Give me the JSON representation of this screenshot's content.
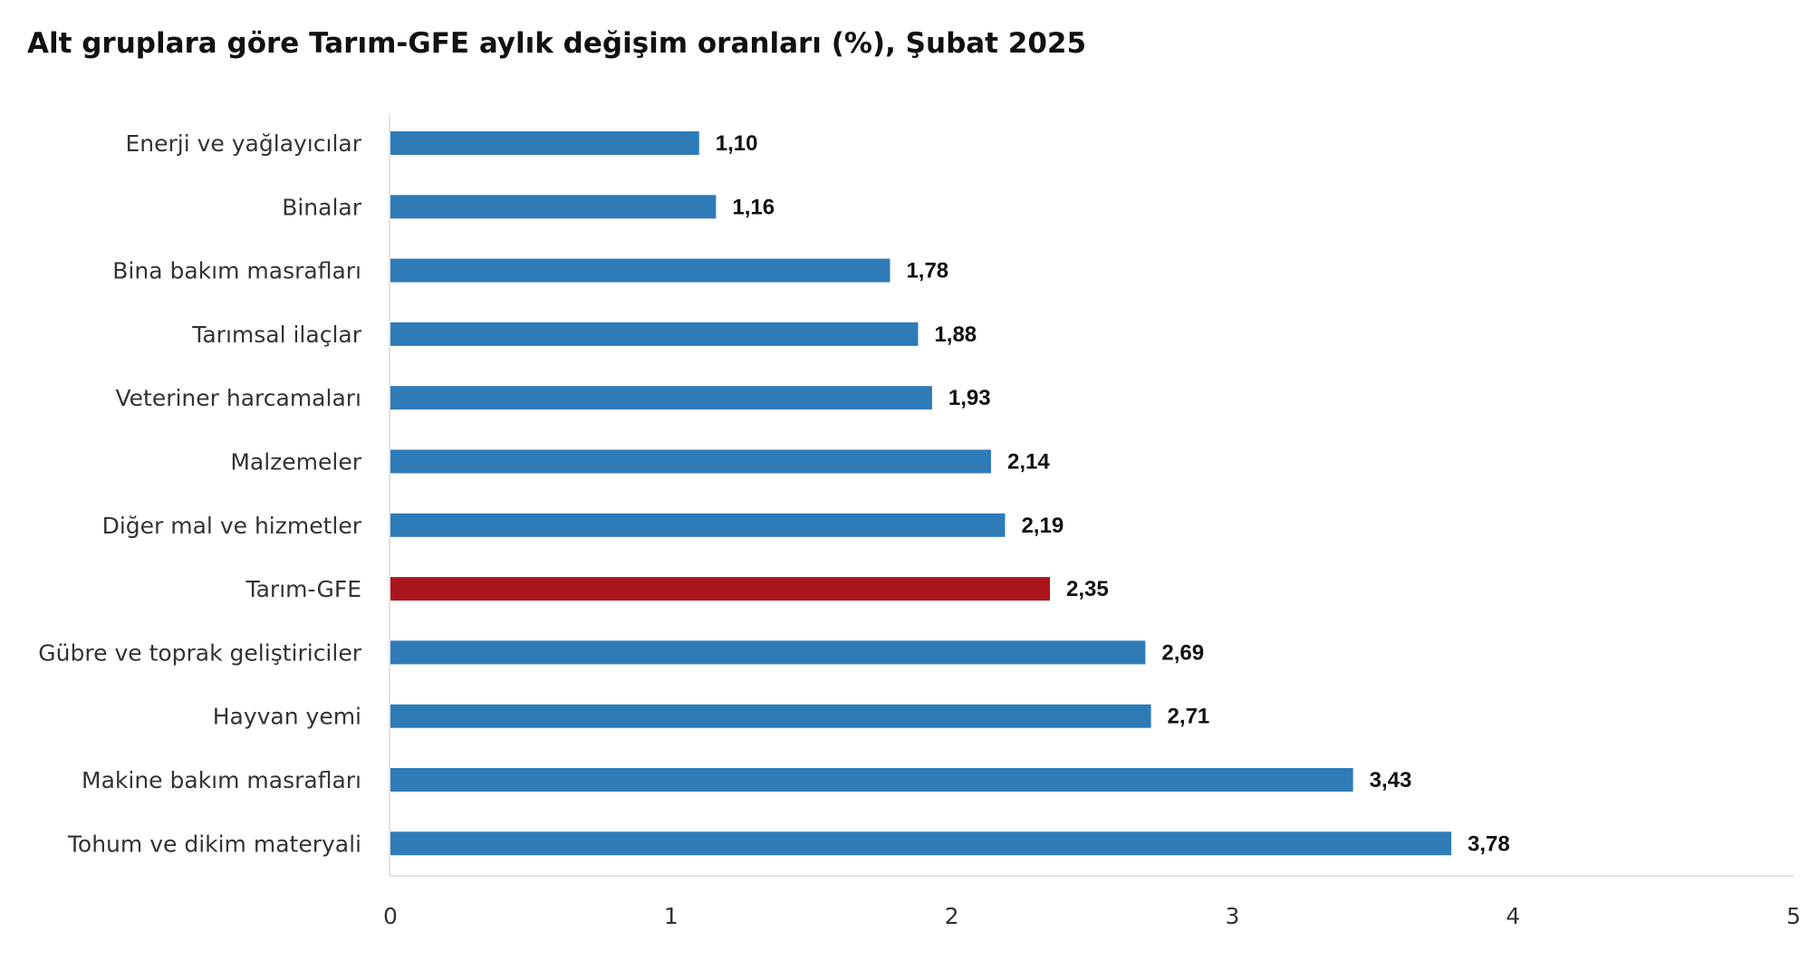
{
  "chart_data": {
    "type": "bar",
    "orientation": "horizontal",
    "title": "Alt gruplara göre Tarım-GFE aylık değişim oranları (%), Şubat 2025",
    "categories": [
      "Enerji  ve yağlayıcılar",
      "Binalar",
      "Bina bakım masrafları",
      "Tarımsal ilaçlar",
      "Veteriner harcamaları",
      "Malzemeler",
      "Diğer mal ve hizmetler",
      "Tarım-GFE",
      "Gübre ve toprak geliştiriciler",
      "Hayvan yemi",
      "Makine bakım masrafları",
      "Tohum ve dikim materyali"
    ],
    "values": [
      1.1,
      1.16,
      1.78,
      1.88,
      1.93,
      2.14,
      2.19,
      2.35,
      2.69,
      2.71,
      3.43,
      3.78
    ],
    "value_labels": [
      "1,10",
      "1,16",
      "1,78",
      "1,88",
      "1,93",
      "2,14",
      "2,19",
      "2,35",
      "2,69",
      "2,71",
      "3,43",
      "3,78"
    ],
    "highlight_category": "Tarım-GFE",
    "xlim": [
      0,
      5
    ],
    "x_ticks": [
      "0",
      "1",
      "2",
      "3",
      "4",
      "5"
    ],
    "grid": false,
    "colors": {
      "bar": "#2e7bb8",
      "highlight": "#ab151d"
    }
  }
}
